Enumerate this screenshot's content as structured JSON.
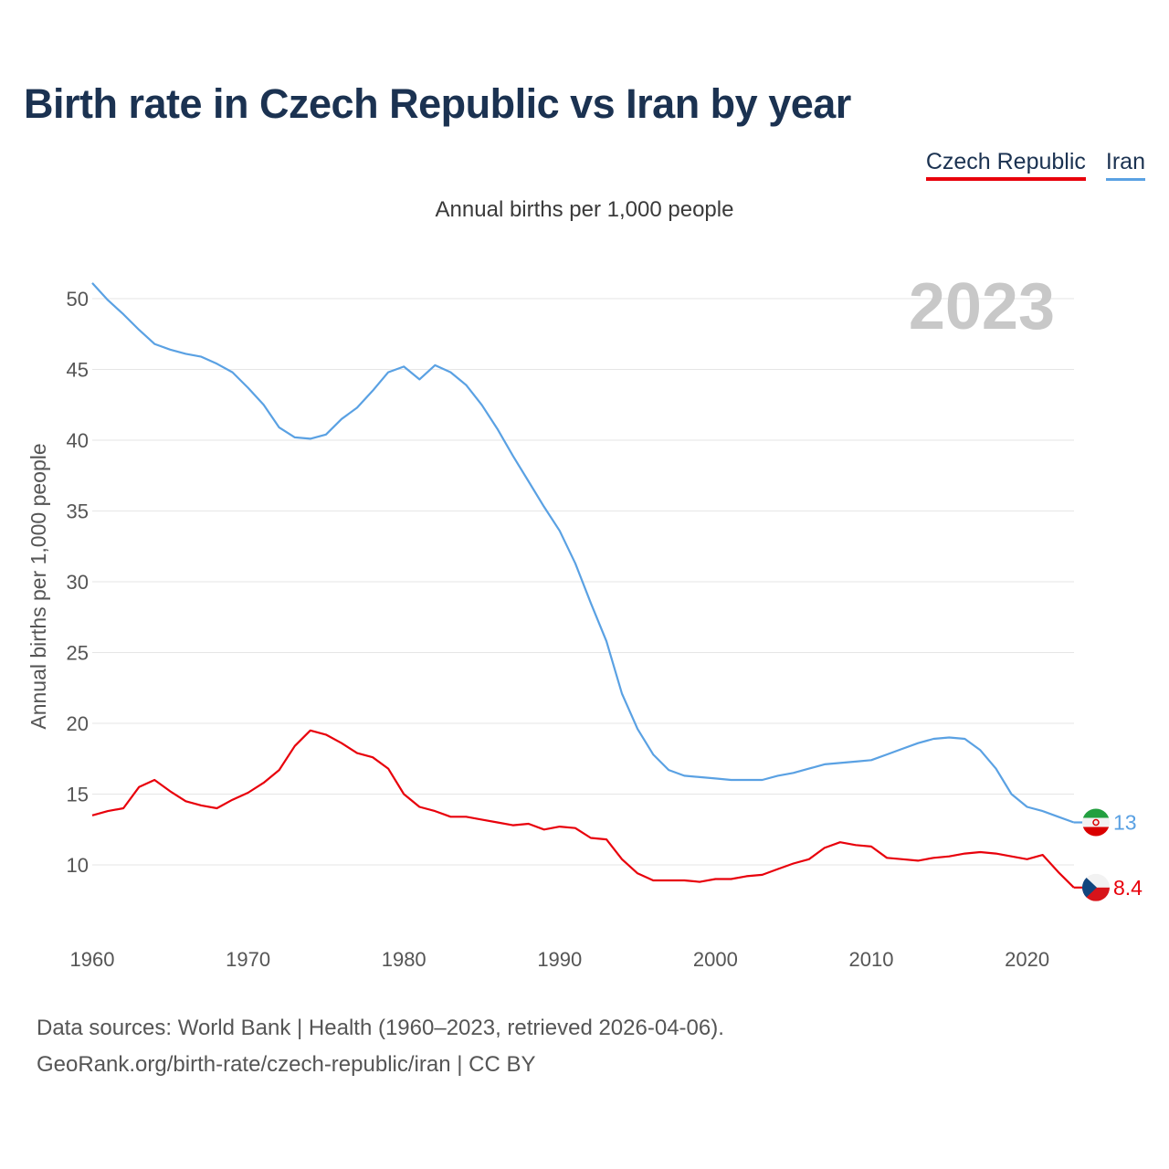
{
  "title": "Birth rate in Czech Republic vs Iran by year",
  "legend": {
    "czech": "Czech Republic",
    "iran": "Iran"
  },
  "subtitle": "Annual births per 1,000 people",
  "footer": {
    "line1": "Data sources: World Bank | Health (1960–2023, retrieved 2026-04-06).",
    "line2": "GeoRank.org/birth-rate/czech-republic/iran | CC BY"
  },
  "colors": {
    "czech": "#e8000b",
    "iran": "#5aa1e3",
    "title": "#1b3251"
  },
  "chart_data": {
    "type": "line",
    "title": "Birth rate in Czech Republic vs Iran by year",
    "ylabel": "Annual births per 1,000 people",
    "xlabel": "",
    "year_label": "2023",
    "xlim": [
      1960,
      2023
    ],
    "ylim": [
      5.5,
      52
    ],
    "x_ticks": [
      1960,
      1970,
      1980,
      1990,
      2000,
      2010,
      2020
    ],
    "y_ticks": [
      10,
      15,
      20,
      25,
      30,
      35,
      40,
      45,
      50
    ],
    "grid": true,
    "legend_position": "top-right",
    "x": [
      1960,
      1961,
      1962,
      1963,
      1964,
      1965,
      1966,
      1967,
      1968,
      1969,
      1970,
      1971,
      1972,
      1973,
      1974,
      1975,
      1976,
      1977,
      1978,
      1979,
      1980,
      1981,
      1982,
      1983,
      1984,
      1985,
      1986,
      1987,
      1988,
      1989,
      1990,
      1991,
      1992,
      1993,
      1994,
      1995,
      1996,
      1997,
      1998,
      1999,
      2000,
      2001,
      2002,
      2003,
      2004,
      2005,
      2006,
      2007,
      2008,
      2009,
      2010,
      2011,
      2012,
      2013,
      2014,
      2015,
      2016,
      2017,
      2018,
      2019,
      2020,
      2021,
      2022,
      2023
    ],
    "series": [
      {
        "name": "Czech Republic",
        "end_label": "8.4",
        "values": [
          13.5,
          13.8,
          14.0,
          15.5,
          16.0,
          15.2,
          14.5,
          14.2,
          14.0,
          14.6,
          15.1,
          15.8,
          16.7,
          18.4,
          19.5,
          19.2,
          18.6,
          17.9,
          17.6,
          16.8,
          15.0,
          14.1,
          13.8,
          13.4,
          13.4,
          13.2,
          13.0,
          12.8,
          12.9,
          12.5,
          12.7,
          12.6,
          11.9,
          11.8,
          10.4,
          9.4,
          8.9,
          8.9,
          8.9,
          8.8,
          9.0,
          9.0,
          9.2,
          9.3,
          9.7,
          10.1,
          10.4,
          11.2,
          11.6,
          11.4,
          11.3,
          10.5,
          10.4,
          10.3,
          10.5,
          10.6,
          10.8,
          10.9,
          10.8,
          10.6,
          10.4,
          10.7,
          9.5,
          8.4
        ]
      },
      {
        "name": "Iran",
        "end_label": "13",
        "values": [
          51.1,
          49.9,
          48.9,
          47.8,
          46.8,
          46.4,
          46.1,
          45.9,
          45.4,
          44.8,
          43.7,
          42.5,
          40.9,
          40.2,
          40.1,
          40.4,
          41.5,
          42.3,
          43.5,
          44.8,
          45.2,
          44.3,
          45.3,
          44.8,
          43.9,
          42.5,
          40.8,
          38.9,
          37.1,
          35.3,
          33.6,
          31.3,
          28.5,
          25.8,
          22.1,
          19.6,
          17.8,
          16.7,
          16.3,
          16.2,
          16.1,
          16.0,
          16.0,
          16.0,
          16.3,
          16.5,
          16.8,
          17.1,
          17.2,
          17.3,
          17.4,
          17.8,
          18.2,
          18.6,
          18.9,
          19.0,
          18.9,
          18.1,
          16.8,
          15.0,
          14.1,
          13.8,
          13.4,
          13.0
        ]
      }
    ]
  }
}
